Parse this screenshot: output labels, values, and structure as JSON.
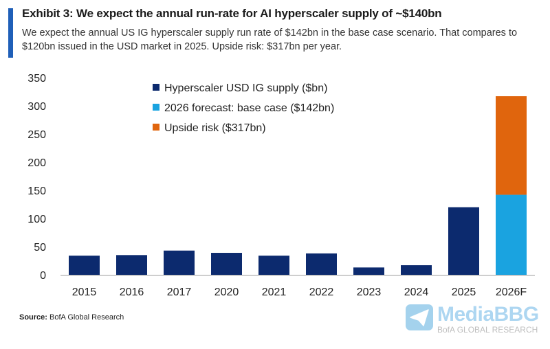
{
  "header": {
    "title": "Exhibit 3: We expect the annual run-rate for AI hyperscaler supply of ~$140bn",
    "subtitle": "We expect the annual US IG hyperscaler supply run rate of $142bn in the base case scenario. That compares to $120bn issued in the USD market in 2025. Upside risk: $317bn per year."
  },
  "source": {
    "label": "Source:",
    "text": "BofA Global Research"
  },
  "watermark": {
    "brand": "MediaBBG",
    "sub": "BofA GLOBAL RESEARCH"
  },
  "colors": {
    "supply": "#0c2a6e",
    "base_case": "#1aa3e0",
    "upside": "#e0650d",
    "accent": "#1f5fb8"
  },
  "chart_data": {
    "type": "bar",
    "title": "Exhibit 3: We expect the annual run-rate for AI hyperscaler supply of ~$140bn",
    "xlabel": "",
    "ylabel": "",
    "ylim": [
      0,
      350
    ],
    "yticks": [
      0,
      50,
      100,
      150,
      200,
      250,
      300,
      350
    ],
    "grid": false,
    "legend_position": "top-center",
    "categories": [
      "2015",
      "2016",
      "2017",
      "2020",
      "2021",
      "2022",
      "2023",
      "2024",
      "2025",
      "2026F"
    ],
    "series": [
      {
        "name": "Hyperscaler USD IG supply ($bn)",
        "color_key": "supply",
        "values": [
          34,
          35,
          43,
          39,
          34,
          38,
          13,
          17,
          120,
          null
        ]
      },
      {
        "name": "2026 forecast: base case ($142bn)",
        "color_key": "base_case",
        "values": [
          null,
          null,
          null,
          null,
          null,
          null,
          null,
          null,
          null,
          142
        ]
      },
      {
        "name": "Upside risk ($317bn)",
        "color_key": "upside",
        "stacked_total": true,
        "values": [
          null,
          null,
          null,
          null,
          null,
          null,
          null,
          null,
          null,
          317
        ]
      }
    ]
  }
}
